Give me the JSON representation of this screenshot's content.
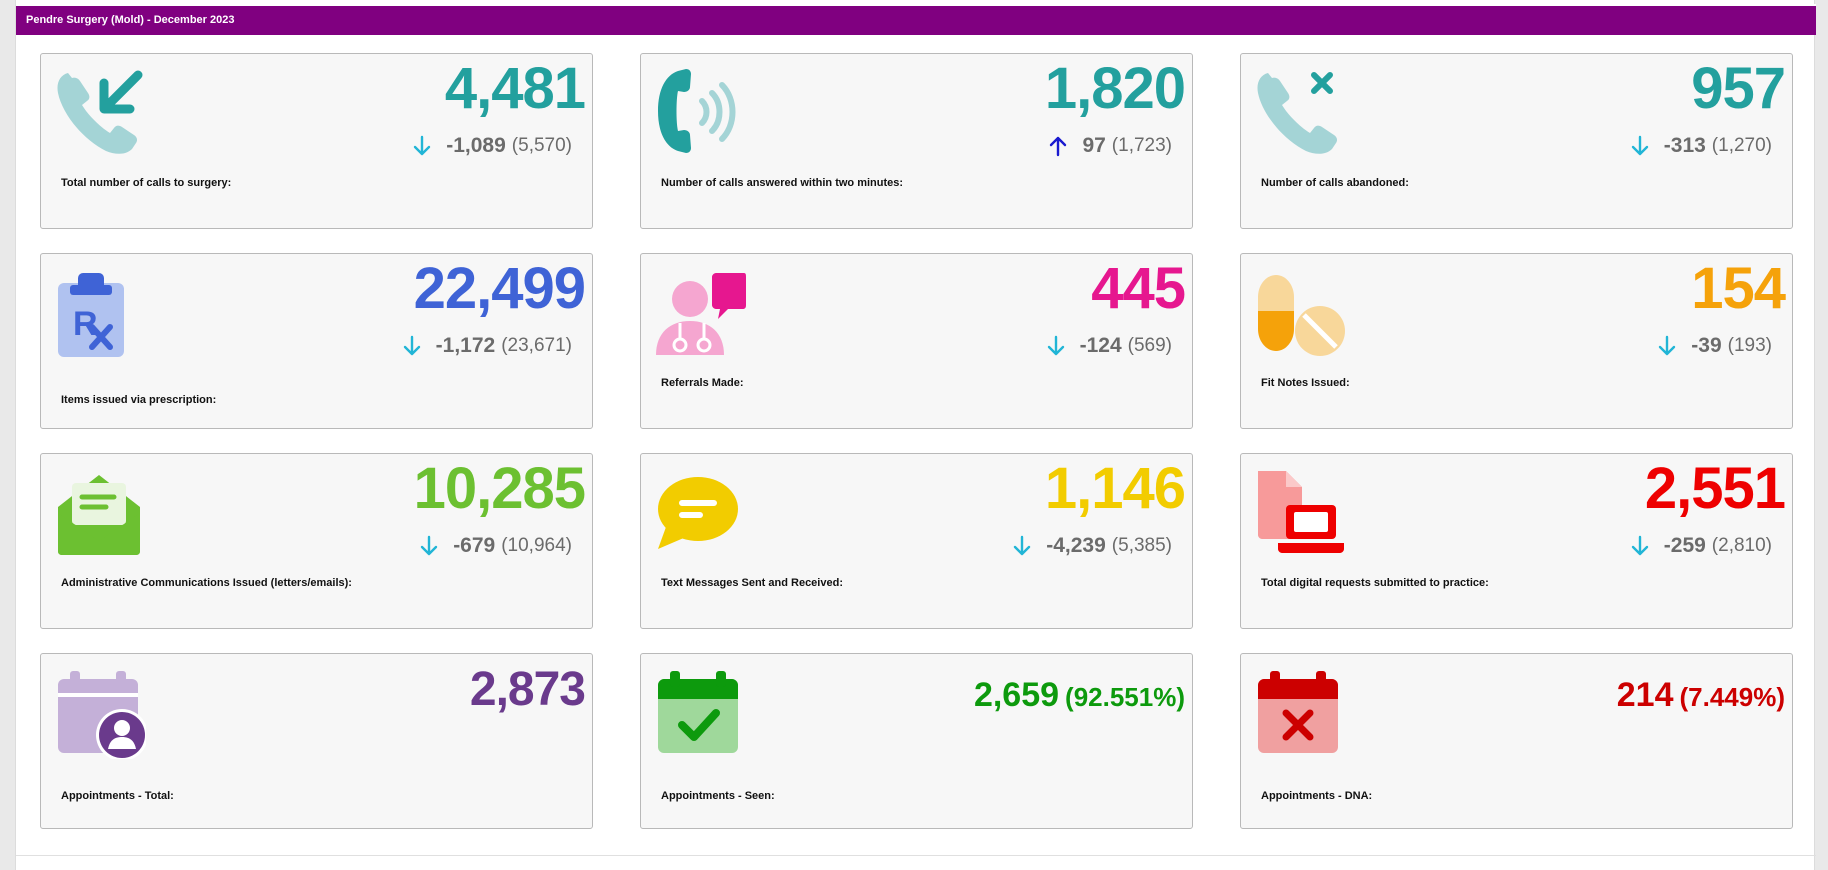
{
  "header": {
    "title": "Pendre Surgery (Mold) - December 2023"
  },
  "colors": {
    "header_bg": "#800080",
    "down_arrow": "#21b5d6",
    "up_arrow": "#1a1acf"
  },
  "cards": [
    {
      "value": "4,481",
      "delta": "-1,089",
      "prev": "(5,570)",
      "direction": "down",
      "label": "Total number of calls to surgery:",
      "color": "#23a09e",
      "icon": "phone-incoming-icon"
    },
    {
      "value": "1,820",
      "delta": "97",
      "prev": "(1,723)",
      "direction": "up",
      "label": "Number of calls answered within two minutes:",
      "color": "#23a09e",
      "icon": "phone-ringing-icon"
    },
    {
      "value": "957",
      "delta": "-313",
      "prev": "(1,270)",
      "direction": "down",
      "label": "Number of calls abandoned:",
      "color": "#23a09e",
      "icon": "phone-missed-icon"
    },
    {
      "value": "22,499",
      "delta": "-1,172",
      "prev": "(23,671)",
      "direction": "down",
      "label": "Items issued via prescription:",
      "color": "#3f63d6",
      "icon": "prescription-clipboard-icon"
    },
    {
      "value": "445",
      "delta": "-124",
      "prev": "(569)",
      "direction": "down",
      "label": "Referrals Made:",
      "color": "#e6178f",
      "icon": "doctor-referral-icon"
    },
    {
      "value": "154",
      "delta": "-39",
      "prev": "(193)",
      "direction": "down",
      "label": "Fit Notes Issued:",
      "color": "#f5a20a",
      "icon": "pills-icon"
    },
    {
      "value": "10,285",
      "delta": "-679",
      "prev": "(10,964)",
      "direction": "down",
      "label": "Administrative Communications Issued (letters/emails):",
      "color": "#6cc031",
      "icon": "envelope-letter-icon"
    },
    {
      "value": "1,146",
      "delta": "-4,239",
      "prev": "(5,385)",
      "direction": "down",
      "label": "Text Messages Sent and Received:",
      "color": "#f2cc00",
      "icon": "message-bubble-icon"
    },
    {
      "value": "2,551",
      "delta": "-259",
      "prev": "(2,810)",
      "direction": "down",
      "label": "Total digital requests submitted to practice:",
      "color": "#ee0000",
      "icon": "digital-request-laptop-icon"
    },
    {
      "value": "2,873",
      "label": "Appointments - Total:",
      "color": "#6a3a8c",
      "icon": "calendar-user-icon"
    },
    {
      "value": "2,659",
      "pct": "(92.551%)",
      "label": "Appointments - Seen:",
      "color": "#0d9a0d",
      "icon": "calendar-check-icon"
    },
    {
      "value": "214",
      "pct": "(7.449%)",
      "label": "Appointments - DNA:",
      "color": "#cc0000",
      "icon": "calendar-cross-icon"
    }
  ]
}
